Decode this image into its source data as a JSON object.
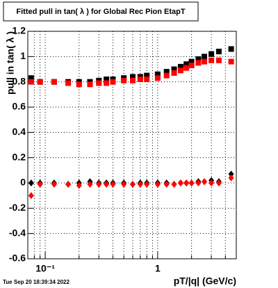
{
  "chart_data": {
    "type": "scatter",
    "title": "Fitted pull in tan( λ ) for Global Rec Pion EtapT",
    "x_label": "pT/|q| (GeV/c)",
    "y_label": "pull in tan( λ )",
    "timestamp": "Tue Sep 20 18:39:34 2022",
    "log_x": true,
    "grid": true,
    "xlim": [
      0.07,
      5
    ],
    "ylim": [
      -0.6,
      1.2
    ],
    "xticks": [
      {
        "value": 0.1,
        "label": "10⁻¹"
      },
      1
    ],
    "yticks": [
      -0.6,
      -0.4,
      -0.2,
      0,
      0.2,
      0.4,
      0.6,
      0.8,
      1,
      1.2
    ],
    "x": [
      0.075,
      0.09,
      0.12,
      0.16,
      0.2,
      0.25,
      0.3,
      0.35,
      0.4,
      0.5,
      0.6,
      0.7,
      0.8,
      1.0,
      1.2,
      1.4,
      1.6,
      1.8,
      2.0,
      2.3,
      2.6,
      3.0,
      3.5,
      4.5
    ],
    "series": [
      {
        "color": "#000000",
        "marker": "square",
        "values": [
          0.83,
          0.8,
          0.8,
          0.8,
          0.8,
          0.8,
          0.81,
          0.82,
          0.82,
          0.83,
          0.84,
          0.84,
          0.85,
          0.86,
          0.88,
          0.9,
          0.92,
          0.94,
          0.96,
          0.98,
          1.0,
          1.02,
          1.04,
          1.06
        ]
      },
      {
        "color": "#ff0000",
        "marker": "square",
        "values": [
          0.8,
          0.8,
          0.8,
          0.79,
          0.78,
          0.78,
          0.79,
          0.79,
          0.8,
          0.81,
          0.81,
          0.82,
          0.82,
          0.83,
          0.85,
          0.87,
          0.89,
          0.91,
          0.93,
          0.95,
          0.96,
          0.97,
          0.97,
          0.96
        ]
      },
      {
        "color": "#000000",
        "marker": "diamond",
        "values": [
          0.0,
          0.0,
          0.0,
          -0.01,
          0.0,
          0.01,
          0.0,
          0.0,
          0.0,
          0.0,
          -0.01,
          0.0,
          0.0,
          0.0,
          0.0,
          -0.01,
          0.0,
          0.0,
          0.0,
          0.01,
          0.01,
          0.02,
          0.01,
          0.07
        ]
      },
      {
        "color": "#ff0000",
        "marker": "diamond",
        "values": [
          -0.1,
          -0.01,
          -0.01,
          -0.01,
          -0.02,
          -0.01,
          -0.01,
          -0.01,
          -0.01,
          -0.01,
          -0.01,
          -0.01,
          -0.01,
          -0.01,
          -0.01,
          -0.01,
          0.0,
          0.0,
          0.0,
          0.0,
          0.01,
          0.0,
          0.0,
          0.04
        ]
      }
    ]
  }
}
